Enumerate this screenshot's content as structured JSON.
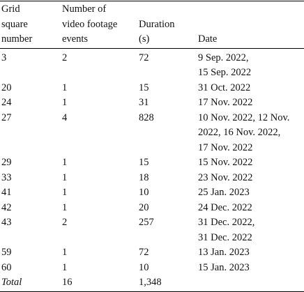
{
  "table": {
    "header": [
      "Grid\nsquare\nnumber",
      "Number of\nvideo footage\nevents",
      "Duration\n(s)",
      "Date"
    ],
    "rows": [
      [
        "3",
        "2",
        "72",
        "9 Sep. 2022,\n15 Sep. 2022"
      ],
      [
        "20",
        "1",
        "15",
        "31 Oct. 2022"
      ],
      [
        "24",
        "1",
        "31",
        "17 Nov. 2022"
      ],
      [
        "27",
        "4",
        "828",
        "10 Nov. 2022, 12 Nov.\n2022, 16 Nov. 2022,\n17 Nov. 2022"
      ],
      [
        "29",
        "1",
        "15",
        "15 Nov. 2022"
      ],
      [
        "33",
        "1",
        "18",
        "23 Nov. 2022"
      ],
      [
        "41",
        "1",
        "10",
        "25 Jan. 2023"
      ],
      [
        "42",
        "1",
        "20",
        "24 Dec. 2022"
      ],
      [
        "43",
        "2",
        "257",
        "31 Dec. 2022,\n31 Dec. 2022"
      ],
      [
        "59",
        "1",
        "72",
        "13 Jan. 2023"
      ],
      [
        "60",
        "1",
        "10",
        "15 Jan. 2023"
      ]
    ],
    "total": [
      "Total",
      "16",
      "1,348"
    ]
  }
}
